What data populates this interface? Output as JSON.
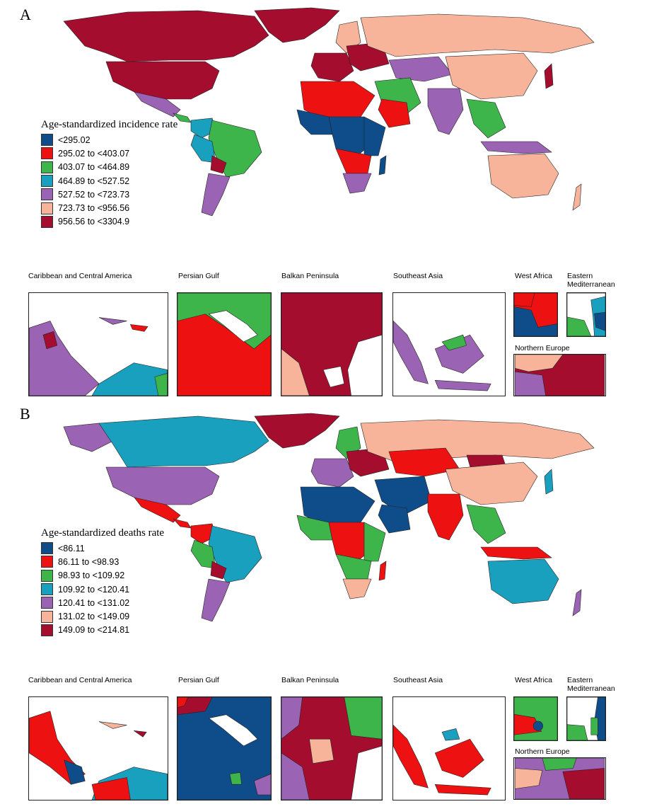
{
  "colors": {
    "dark_blue": "#0f4c8a",
    "red": "#ee1111",
    "green": "#3db54a",
    "teal": "#1aa0bf",
    "purple": "#9a63b3",
    "peach": "#f7b49a",
    "dark_red": "#a50d2f"
  },
  "panels": [
    {
      "letter": "A",
      "legend_title": "Age-standardized incidence rate",
      "legend": [
        {
          "label": "<295.02",
          "color": "#0f4c8a"
        },
        {
          "label": "295.02 to <403.07",
          "color": "#ee1111"
        },
        {
          "label": "403.07 to <464.89",
          "color": "#3db54a"
        },
        {
          "label": "464.89 to <527.52",
          "color": "#1aa0bf"
        },
        {
          "label": "527.52 to <723.73",
          "color": "#9a63b3"
        },
        {
          "label": "723.73 to <956.56",
          "color": "#f7b49a"
        },
        {
          "label": "956.56 to <3304.9",
          "color": "#a50d2f"
        }
      ],
      "insets": [
        {
          "title": "Caribbean and Central America"
        },
        {
          "title": "Persian Gulf"
        },
        {
          "title": "Balkan Peninsula"
        },
        {
          "title": "Southeast Asia"
        },
        {
          "title": "West Africa"
        },
        {
          "title": "Eastern\nMediterranean"
        },
        {
          "title": "Northern Europe"
        }
      ]
    },
    {
      "letter": "B",
      "legend_title": "Age-standardized deaths rate",
      "legend": [
        {
          "label": "<86.11",
          "color": "#0f4c8a"
        },
        {
          "label": "86.11 to <98.93",
          "color": "#ee1111"
        },
        {
          "label": "98.93 to <109.92",
          "color": "#3db54a"
        },
        {
          "label": "109.92 to <120.41",
          "color": "#1aa0bf"
        },
        {
          "label": "120.41 to <131.02",
          "color": "#9a63b3"
        },
        {
          "label": "131.02 to <149.09",
          "color": "#f7b49a"
        },
        {
          "label": "149.09 to <214.81",
          "color": "#a50d2f"
        }
      ],
      "insets": [
        {
          "title": "Caribbean and Central America"
        },
        {
          "title": "Persian Gulf"
        },
        {
          "title": "Balkan Peninsula"
        },
        {
          "title": "Southeast Asia"
        },
        {
          "title": "West Africa"
        },
        {
          "title": "Eastern\nMediterranean"
        },
        {
          "title": "Northern Europe"
        }
      ]
    }
  ]
}
